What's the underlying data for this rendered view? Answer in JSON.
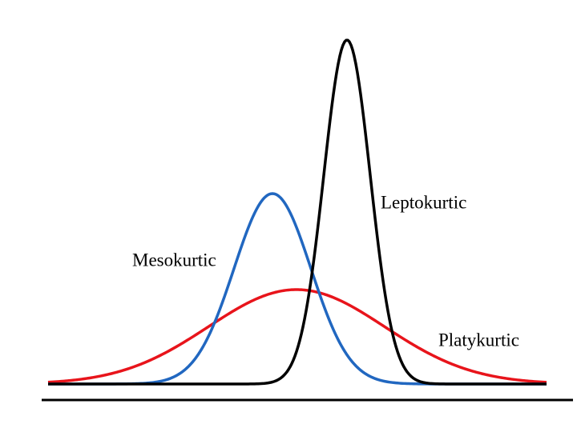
{
  "labels": {
    "leptokurtic": "Leptokurtic",
    "mesokurtic": "Mesokurtic",
    "platykurtic": "Platykurtic"
  }
}
